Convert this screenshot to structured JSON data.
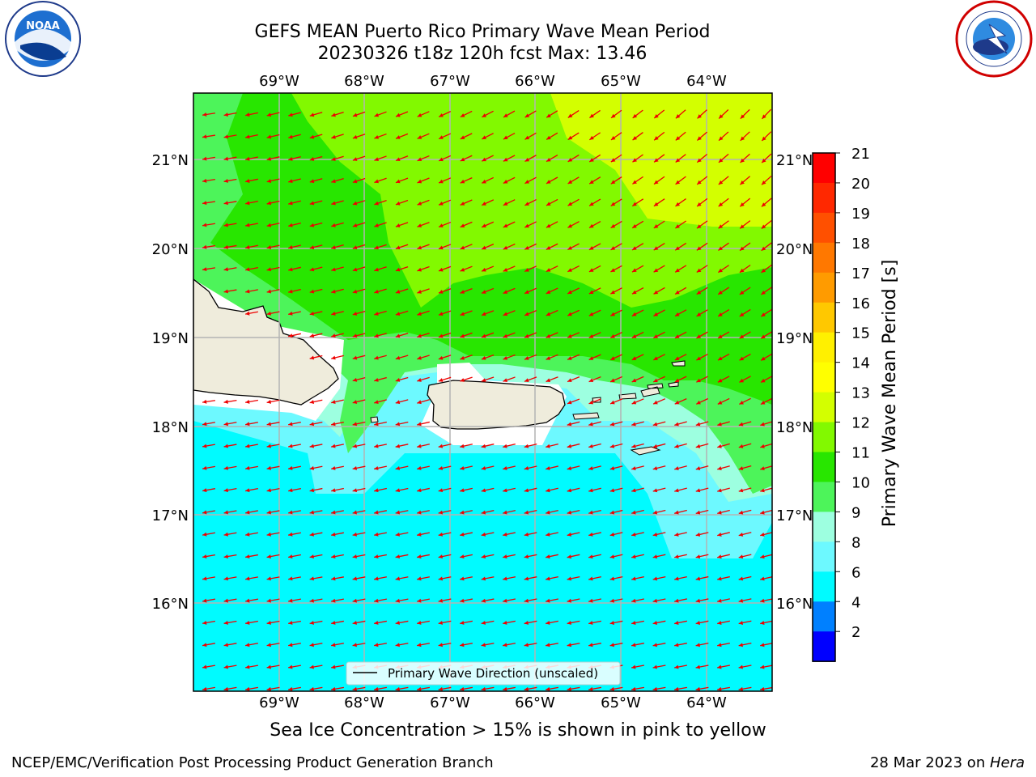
{
  "header": {
    "title_line1": "GEFS MEAN Puerto Rico Primary Wave Mean Period",
    "title_line2": "20230326 t18z 120h fcst   Max: 13.46"
  },
  "logos": {
    "left": {
      "name": "noaa-logo",
      "text": "NOAA",
      "ring_text": "NATIONAL OCEANIC AND ATMOSPHERIC ADMINISTRATION · U.S. DEPARTMENT OF COMMERCE"
    },
    "right": {
      "name": "nws-logo",
      "ring_text": "NATIONAL WEATHER SERVICE"
    }
  },
  "map": {
    "lon_labels": [
      "69°W",
      "68°W",
      "67°W",
      "66°W",
      "65°W",
      "64°W"
    ],
    "lat_labels": [
      "21°N",
      "20°N",
      "19°N",
      "18°N",
      "17°N",
      "16°N"
    ],
    "colors": {
      "land": "#efecdc",
      "arrow": "#ee0000",
      "grid": "#b4b4b4",
      "water_8": "#00fbff",
      "water_9": "#6df9ff",
      "water_10": "#9dffe0",
      "water_11": "#4df45a",
      "water_12": "#28e600",
      "water_13": "#82f900",
      "water_14": "#d3ff00"
    },
    "legend_text": "Primary Wave Direction (unscaled)"
  },
  "colorbar": {
    "label": "Primary Wave Mean Period [s]",
    "ticks": [
      "21",
      "20",
      "19",
      "18",
      "17",
      "16",
      "15",
      "14",
      "13",
      "12",
      "11",
      "10",
      "9",
      "8",
      "6",
      "4",
      "2"
    ],
    "colors": [
      "#ff0000",
      "#ff2800",
      "#ff5000",
      "#ff7800",
      "#ff9b00",
      "#ffc800",
      "#fff000",
      "#ffff00",
      "#d3ff00",
      "#82f900",
      "#28e600",
      "#4df45a",
      "#9dffe0",
      "#6df9ff",
      "#00fbff",
      "#0080ff",
      "#0000ff"
    ]
  },
  "caption": "Sea Ice Concentration > 15% is shown in pink to yellow",
  "footer": {
    "left": "NCEP/EMC/Verification Post Processing Product Generation Branch",
    "right_date": "28 Mar 2023 on ",
    "right_host": "Hera"
  }
}
